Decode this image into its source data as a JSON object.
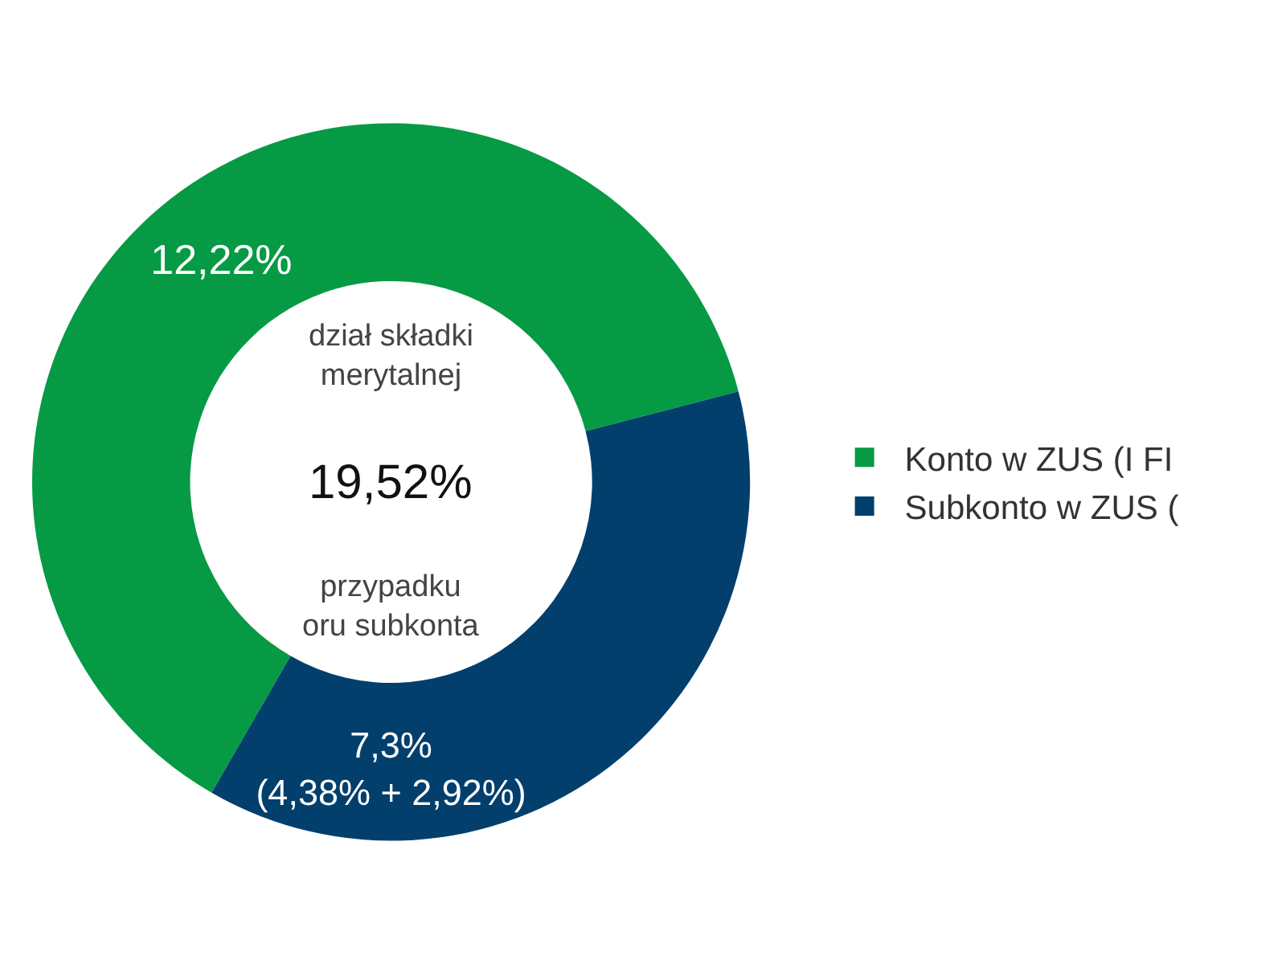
{
  "chart_data": {
    "type": "donut",
    "categories": [
      "Konto w ZUS (I FI",
      "Subkonto w ZUS ("
    ],
    "values": [
      12.22,
      7.3
    ],
    "colors": [
      "#069a44",
      "#023f6d"
    ],
    "value_labels": [
      "12,22%",
      "7,3%\n(4,38% + 2,92%)"
    ],
    "annotations": [
      "dział składki\nmerytalnej",
      "19,52%",
      "przypadku\noru subkonta"
    ],
    "legend": "right"
  }
}
